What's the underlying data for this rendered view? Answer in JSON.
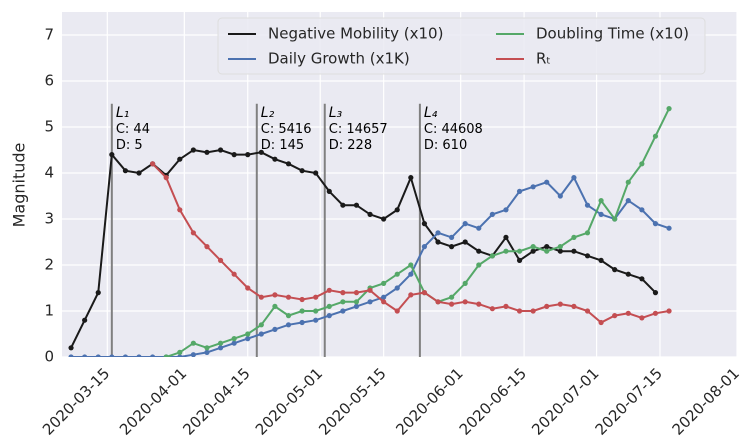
{
  "chart_data": {
    "type": "line",
    "ylabel": "Magnitude",
    "ylim": [
      0,
      7.5
    ],
    "yticks": [
      0,
      1,
      2,
      3,
      4,
      5,
      6,
      7
    ],
    "xlim": [
      "2020-03-05",
      "2020-08-01"
    ],
    "xticks": [
      "2020-03-15",
      "2020-04-01",
      "2020-04-15",
      "2020-05-01",
      "2020-05-15",
      "2020-06-01",
      "2020-06-15",
      "2020-07-01",
      "2020-07-15",
      "2020-08-01"
    ],
    "grid": true,
    "legend": "upper right",
    "x": [
      "2020-03-07",
      "2020-03-10",
      "2020-03-13",
      "2020-03-16",
      "2020-03-19",
      "2020-03-22",
      "2020-03-25",
      "2020-03-28",
      "2020-03-31",
      "2020-04-03",
      "2020-04-06",
      "2020-04-09",
      "2020-04-12",
      "2020-04-15",
      "2020-04-18",
      "2020-04-21",
      "2020-04-24",
      "2020-04-27",
      "2020-04-30",
      "2020-05-03",
      "2020-05-06",
      "2020-05-09",
      "2020-05-12",
      "2020-05-15",
      "2020-05-18",
      "2020-05-21",
      "2020-05-24",
      "2020-05-27",
      "2020-05-30",
      "2020-06-02",
      "2020-06-05",
      "2020-06-08",
      "2020-06-11",
      "2020-06-14",
      "2020-06-17",
      "2020-06-20",
      "2020-06-23",
      "2020-06-26",
      "2020-06-29",
      "2020-07-02",
      "2020-07-05",
      "2020-07-08",
      "2020-07-11",
      "2020-07-14",
      "2020-07-17"
    ],
    "series": [
      {
        "name": "Negative Mobility (x10)",
        "color": "#1a1a1a",
        "values": [
          0.2,
          0.8,
          1.4,
          4.4,
          4.05,
          4.0,
          4.2,
          3.95,
          4.3,
          4.5,
          4.45,
          4.5,
          4.4,
          4.4,
          4.45,
          4.3,
          4.2,
          4.05,
          4.0,
          3.6,
          3.3,
          3.3,
          3.1,
          3.0,
          3.2,
          3.9,
          2.9,
          2.5,
          2.4,
          2.5,
          2.3,
          2.2,
          2.6,
          2.1,
          2.3,
          2.4,
          2.3,
          2.3,
          2.2,
          2.1,
          1.9,
          1.8,
          1.7,
          1.4,
          null
        ]
      },
      {
        "name": "Daily Growth (x1K)",
        "color": "#4c72b0",
        "values": [
          0,
          0,
          0,
          0,
          0,
          0,
          0,
          0,
          0,
          0.05,
          0.1,
          0.2,
          0.3,
          0.4,
          0.5,
          0.6,
          0.7,
          0.75,
          0.8,
          0.9,
          1.0,
          1.1,
          1.2,
          1.3,
          1.5,
          1.8,
          2.4,
          2.7,
          2.6,
          2.9,
          2.8,
          3.1,
          3.2,
          3.6,
          3.7,
          3.8,
          3.5,
          3.9,
          3.3,
          3.1,
          3.0,
          3.4,
          3.2,
          2.9,
          2.8
        ]
      },
      {
        "name": "Doubling Time (x10)",
        "color": "#55a868",
        "values": [
          null,
          null,
          null,
          null,
          null,
          null,
          null,
          0,
          0.1,
          0.3,
          0.2,
          0.3,
          0.4,
          0.5,
          0.7,
          1.1,
          0.9,
          1.0,
          1.0,
          1.1,
          1.2,
          1.2,
          1.5,
          1.6,
          1.8,
          2.0,
          1.4,
          1.2,
          1.3,
          1.6,
          2.0,
          2.2,
          2.3,
          2.3,
          2.4,
          2.3,
          2.4,
          2.6,
          2.7,
          3.4,
          3.0,
          3.8,
          4.2,
          4.8,
          5.4
        ]
      },
      {
        "name": "Rₜ",
        "color": "#c44e52",
        "values": [
          null,
          null,
          null,
          null,
          null,
          null,
          4.2,
          3.9,
          3.2,
          2.7,
          2.4,
          2.1,
          1.8,
          1.5,
          1.3,
          1.35,
          1.3,
          1.25,
          1.3,
          1.45,
          1.4,
          1.4,
          1.45,
          1.2,
          1.0,
          1.35,
          1.4,
          1.2,
          1.15,
          1.2,
          1.15,
          1.05,
          1.1,
          1.0,
          1.0,
          1.1,
          1.15,
          1.1,
          1.0,
          0.75,
          0.9,
          0.95,
          0.85,
          0.95,
          1.0
        ]
      }
    ],
    "vlines": [
      {
        "x": "2020-03-16",
        "label": "L₁",
        "lines": [
          "C: 44",
          "D: 5"
        ]
      },
      {
        "x": "2020-04-17",
        "label": "L₂",
        "lines": [
          "C: 5416",
          "D: 145"
        ]
      },
      {
        "x": "2020-05-02",
        "label": "L₃",
        "lines": [
          "C: 14657",
          "D: 228"
        ]
      },
      {
        "x": "2020-05-23",
        "label": "L₄",
        "lines": [
          "C: 44608",
          "D: 610"
        ]
      }
    ]
  }
}
